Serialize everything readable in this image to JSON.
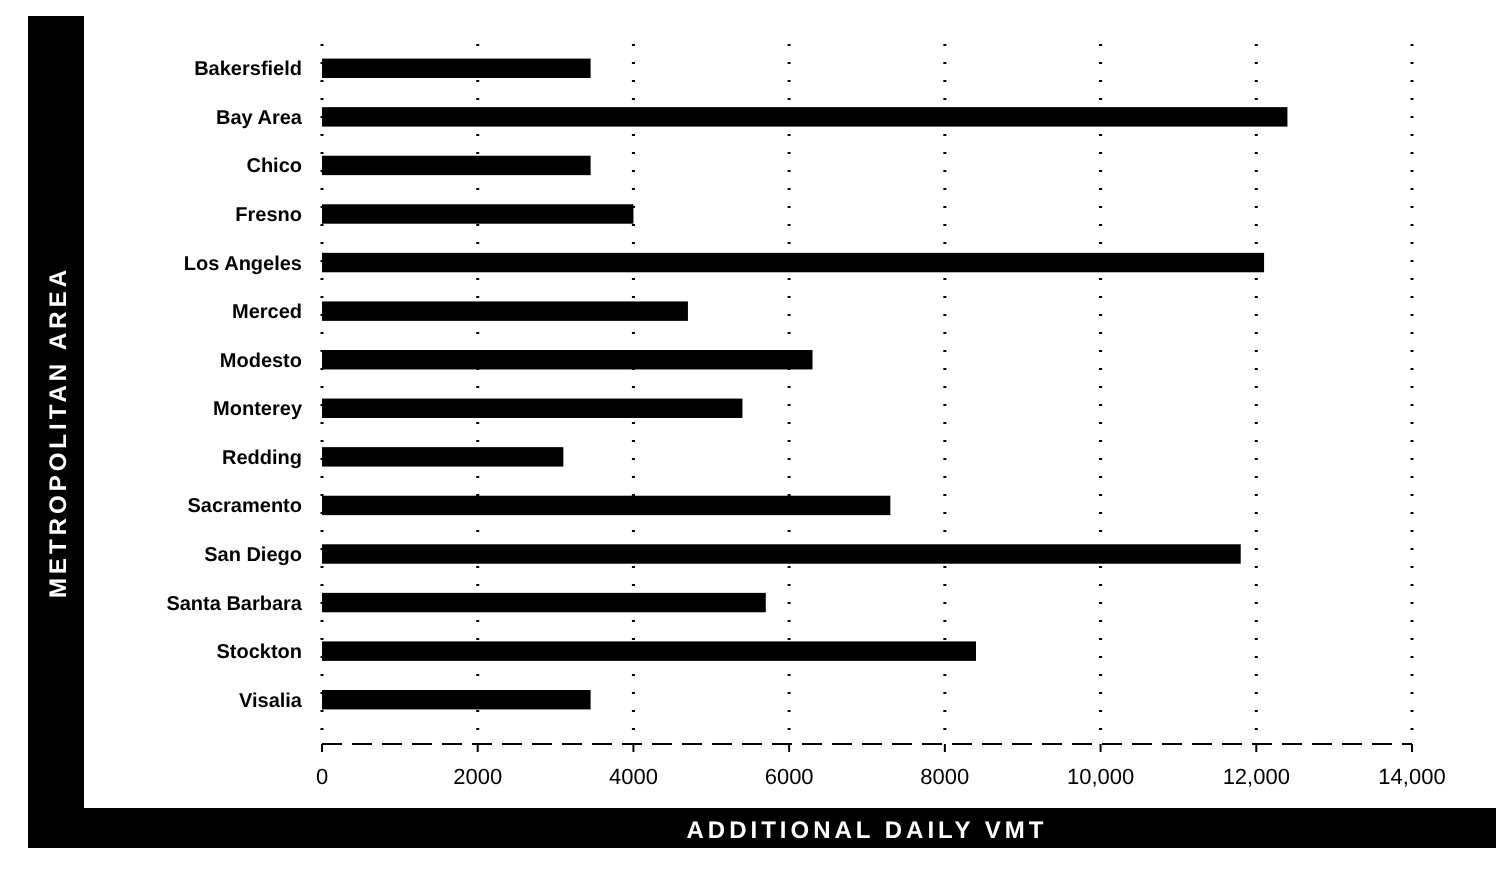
{
  "chart_data": {
    "type": "bar",
    "orientation": "horizontal",
    "xlabel": "ADDITIONAL DAILY VMT",
    "ylabel": "METROPOLITAN AREA",
    "categories": [
      "Bakersfield",
      "Bay Area",
      "Chico",
      "Fresno",
      "Los Angeles",
      "Merced",
      "Modesto",
      "Monterey",
      "Redding",
      "Sacramento",
      "San Diego",
      "Santa Barbara",
      "Stockton",
      "Visalia"
    ],
    "values": [
      3450,
      12400,
      3450,
      4000,
      12100,
      4700,
      6300,
      5400,
      3100,
      7300,
      11800,
      5700,
      8400,
      3450
    ],
    "color": "#000000",
    "xlim": [
      0,
      14000
    ],
    "xticks": [
      0,
      2000,
      4000,
      6000,
      8000,
      {
        "value": 10000,
        "label": "10,000"
      },
      {
        "value": 12000,
        "label": "12,000"
      },
      {
        "value": 14000,
        "label": "14,000"
      }
    ],
    "grid": "x"
  }
}
